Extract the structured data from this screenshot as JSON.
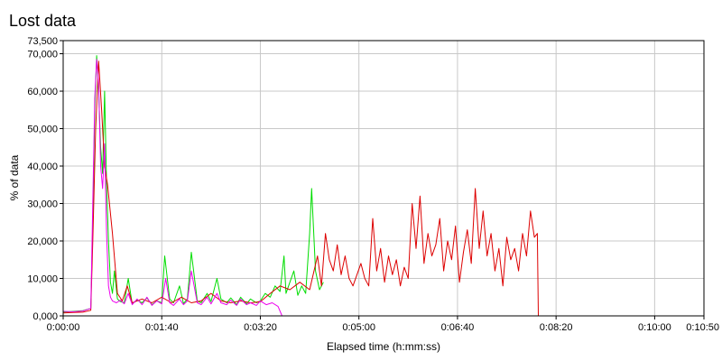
{
  "chart_data": {
    "type": "line",
    "title": "Lost data",
    "xlabel": "Elapsed time (h:mm:ss)",
    "ylabel": "% of data",
    "x_unit": "seconds",
    "xlim": [
      0,
      650
    ],
    "ylim": [
      0,
      73500
    ],
    "x_ticks": [
      "0:00:00",
      "0:01:40",
      "0:03:20",
      "0:05:00",
      "0:06:40",
      "0:08:20",
      "0:10:00",
      "0:10:50"
    ],
    "x_tick_values": [
      0,
      100,
      200,
      300,
      400,
      500,
      600,
      650
    ],
    "y_ticks": [
      "0,000",
      "10,000",
      "20,000",
      "30,000",
      "40,000",
      "50,000",
      "60,000",
      "70,000",
      "73,500"
    ],
    "y_tick_values": [
      0,
      10000,
      20000,
      30000,
      40000,
      50000,
      60000,
      70000,
      73500
    ],
    "grid": true,
    "series": [
      {
        "color": "#00dd00",
        "x": [
          0,
          10,
          20,
          28,
          30,
          32,
          34,
          36,
          38,
          40,
          42,
          44,
          46,
          48,
          50,
          52,
          55,
          58,
          62,
          66,
          70,
          75,
          80,
          85,
          90,
          95,
          100,
          103,
          108,
          112,
          118,
          122,
          126,
          130,
          136,
          140,
          146,
          150,
          156,
          160,
          166,
          170,
          176,
          180,
          186,
          190,
          196,
          200,
          205,
          210,
          215,
          220,
          224,
          226,
          230,
          234,
          238,
          242,
          246,
          250,
          252,
          256,
          260,
          264
        ],
        "y": [
          1000,
          1200,
          1400,
          2000,
          25000,
          55000,
          69500,
          60000,
          45000,
          38000,
          60000,
          35000,
          20000,
          9000,
          6000,
          12000,
          4500,
          3800,
          3500,
          10000,
          3200,
          4200,
          3500,
          4800,
          3000,
          4000,
          3500,
          16000,
          4500,
          3500,
          8000,
          3300,
          4500,
          17000,
          4000,
          3500,
          6000,
          3800,
          10000,
          4500,
          3500,
          4800,
          3000,
          5000,
          3200,
          4500,
          3500,
          4000,
          6000,
          5000,
          8000,
          6500,
          16000,
          6000,
          9000,
          12000,
          5500,
          8000,
          6000,
          22000,
          34000,
          12000,
          7000,
          9000
        ]
      },
      {
        "color": "#dd0000",
        "x": [
          0,
          10,
          20,
          28,
          30,
          33,
          36,
          39,
          42,
          45,
          50,
          55,
          60,
          65,
          70,
          80,
          90,
          100,
          110,
          120,
          130,
          140,
          150,
          160,
          170,
          180,
          190,
          200,
          210,
          220,
          230,
          240,
          250,
          258,
          262,
          266,
          270,
          274,
          278,
          282,
          286,
          290,
          294,
          298,
          302,
          306,
          310,
          314,
          318,
          322,
          326,
          330,
          334,
          338,
          342,
          346,
          350,
          354,
          358,
          362,
          366,
          370,
          374,
          378,
          382,
          386,
          390,
          394,
          398,
          402,
          406,
          410,
          414,
          418,
          422,
          426,
          430,
          434,
          438,
          442,
          446,
          450,
          454,
          458,
          462,
          466,
          470,
          474,
          478,
          481,
          482
        ],
        "y": [
          800,
          900,
          1000,
          1500,
          20000,
          50000,
          68000,
          55000,
          40000,
          35000,
          22000,
          6000,
          4000,
          8000,
          3500,
          4500,
          3500,
          5000,
          3500,
          5000,
          3500,
          4000,
          6000,
          4000,
          3500,
          4000,
          3500,
          3800,
          6000,
          8000,
          7000,
          9000,
          7000,
          16000,
          8000,
          22000,
          15000,
          12000,
          19000,
          11000,
          16000,
          10000,
          8000,
          11000,
          14000,
          10000,
          8000,
          26000,
          12000,
          18000,
          9000,
          16000,
          11000,
          15000,
          8000,
          13000,
          10000,
          30000,
          18000,
          32000,
          14000,
          22000,
          16000,
          19000,
          26000,
          12000,
          20000,
          15000,
          24000,
          9000,
          17000,
          23000,
          14000,
          34000,
          18000,
          28000,
          16000,
          22000,
          12000,
          18000,
          8000,
          21000,
          15000,
          18000,
          12000,
          22000,
          16000,
          28000,
          21000,
          22000,
          0
        ]
      },
      {
        "color": "#ee00ee",
        "x": [
          0,
          10,
          20,
          28,
          30,
          32,
          34,
          36,
          38,
          40,
          42,
          44,
          46,
          48,
          50,
          54,
          58,
          62,
          66,
          70,
          75,
          80,
          85,
          90,
          95,
          100,
          104,
          108,
          112,
          118,
          122,
          126,
          130,
          136,
          140,
          146,
          150,
          156,
          160,
          166,
          170,
          176,
          180,
          186,
          190,
          196,
          200,
          206,
          212,
          218,
          222
        ],
        "y": [
          1200,
          1100,
          1300,
          2000,
          30000,
          58000,
          68500,
          62000,
          40000,
          34000,
          46000,
          22000,
          8000,
          5000,
          4000,
          3500,
          4200,
          3200,
          6000,
          3000,
          4500,
          3000,
          5000,
          2800,
          4000,
          3200,
          10000,
          3500,
          2800,
          4500,
          3000,
          4000,
          12000,
          3500,
          3000,
          5000,
          3200,
          6000,
          3500,
          3000,
          4200,
          2800,
          4500,
          3000,
          3500,
          2800,
          4000,
          3000,
          3500,
          2500,
          0
        ]
      }
    ]
  }
}
